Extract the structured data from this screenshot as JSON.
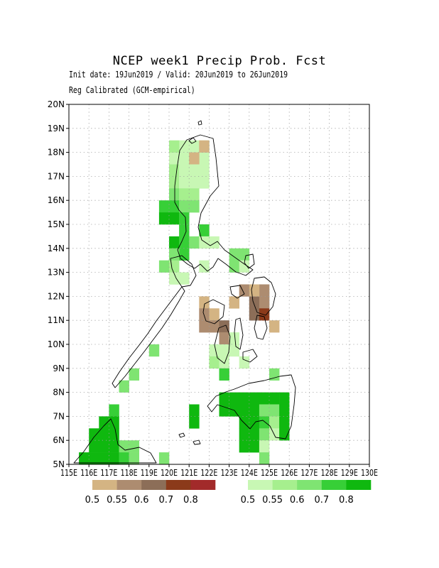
{
  "title": "NCEP week1 Precip Prob. Fcst",
  "subtitle_1": "Init date: 19Jun2019 / Valid: 20Jun2019 to 26Jun2019",
  "subtitle_2": "Reg Calibrated (GCM-empirical)",
  "map": {
    "lon_range": [
      115,
      130
    ],
    "lat_range": [
      5,
      20
    ],
    "grid": true,
    "y_tick_labels": [
      "5N",
      "6N",
      "7N",
      "8N",
      "9N",
      "10N",
      "11N",
      "12N",
      "13N",
      "14N",
      "15N",
      "16N",
      "17N",
      "18N",
      "19N",
      "20N"
    ],
    "x_tick_labels": [
      "115E",
      "116E",
      "117E",
      "118E",
      "119E",
      "120E",
      "121E",
      "122E",
      "123E",
      "124E",
      "125E",
      "126E",
      "127E",
      "128E",
      "129E",
      "130E"
    ],
    "colors": {
      "dry": [
        "#d4b483",
        "#ad8c70",
        "#8c6e58",
        "#8b3a1a",
        "#a22a2a"
      ],
      "wet": [
        "#c8f7b4",
        "#a6ef8e",
        "#7fe472",
        "#37cf37",
        "#0fb80f"
      ]
    },
    "cells": [
      {
        "lon": 120.25,
        "lat": 17.75,
        "cat": "w1"
      },
      {
        "lon": 120.25,
        "lat": 17.25,
        "cat": "w2"
      },
      {
        "lon": 120.25,
        "lat": 16.75,
        "cat": "w2"
      },
      {
        "lon": 120.25,
        "lat": 16.25,
        "cat": "w3"
      },
      {
        "lon": 120.25,
        "lat": 15.75,
        "cat": "w4"
      },
      {
        "lon": 119.75,
        "lat": 15.75,
        "cat": "w4"
      },
      {
        "lon": 119.75,
        "lat": 15.25,
        "cat": "w5"
      },
      {
        "lon": 120.25,
        "lat": 15.25,
        "cat": "w5"
      },
      {
        "lon": 120.75,
        "lat": 17.75,
        "cat": "w1"
      },
      {
        "lon": 121.25,
        "lat": 17.75,
        "cat": "w1"
      },
      {
        "lon": 121.75,
        "lat": 17.75,
        "cat": "w1"
      },
      {
        "lon": 121.75,
        "lat": 18.25,
        "cat": "w1"
      },
      {
        "lon": 121.25,
        "lat": 18.25,
        "cat": "w1"
      },
      {
        "lon": 120.75,
        "lat": 18.25,
        "cat": "w1"
      },
      {
        "lon": 120.25,
        "lat": 18.25,
        "cat": "w2"
      },
      {
        "lon": 121.75,
        "lat": 18.25,
        "cat": "d1"
      },
      {
        "lon": 121.25,
        "lat": 17.75,
        "cat": "d1"
      },
      {
        "lon": 120.75,
        "lat": 17.25,
        "cat": "w1"
      },
      {
        "lon": 121.25,
        "lat": 17.25,
        "cat": "w1"
      },
      {
        "lon": 121.75,
        "lat": 17.25,
        "cat": "w1"
      },
      {
        "lon": 121.75,
        "lat": 16.75,
        "cat": "w1"
      },
      {
        "lon": 121.25,
        "lat": 16.75,
        "cat": "w1"
      },
      {
        "lon": 120.75,
        "lat": 16.75,
        "cat": "w1"
      },
      {
        "lon": 120.75,
        "lat": 16.25,
        "cat": "w2"
      },
      {
        "lon": 121.25,
        "lat": 16.25,
        "cat": "w2"
      },
      {
        "lon": 120.75,
        "lat": 15.75,
        "cat": "w3"
      },
      {
        "lon": 121.25,
        "lat": 15.75,
        "cat": "w3"
      },
      {
        "lon": 120.75,
        "lat": 15.25,
        "cat": "w4"
      },
      {
        "lon": 120.75,
        "lat": 14.75,
        "cat": "w4"
      },
      {
        "lon": 120.25,
        "lat": 14.25,
        "cat": "w5"
      },
      {
        "lon": 120.75,
        "lat": 14.25,
        "cat": "w4"
      },
      {
        "lon": 120.75,
        "lat": 13.75,
        "cat": "w4"
      },
      {
        "lon": 121.25,
        "lat": 14.25,
        "cat": "w3"
      },
      {
        "lon": 121.75,
        "lat": 14.75,
        "cat": "w4"
      },
      {
        "lon": 121.75,
        "lat": 14.25,
        "cat": "w1"
      },
      {
        "lon": 122.25,
        "lat": 14.25,
        "cat": "w1"
      },
      {
        "lon": 120.25,
        "lat": 13.75,
        "cat": "w3"
      },
      {
        "lon": 119.75,
        "lat": 13.25,
        "cat": "w3"
      },
      {
        "lon": 120.25,
        "lat": 13.25,
        "cat": "w2"
      },
      {
        "lon": 120.25,
        "lat": 12.75,
        "cat": "w1"
      },
      {
        "lon": 120.75,
        "lat": 12.75,
        "cat": "w1"
      },
      {
        "lon": 121.75,
        "lat": 13.25,
        "cat": "w1"
      },
      {
        "lon": 123.25,
        "lat": 13.75,
        "cat": "w3"
      },
      {
        "lon": 123.75,
        "lat": 13.75,
        "cat": "w3"
      },
      {
        "lon": 123.25,
        "lat": 13.25,
        "cat": "w3"
      },
      {
        "lon": 123.75,
        "lat": 13.25,
        "cat": "w1"
      },
      {
        "lon": 123.75,
        "lat": 12.25,
        "cat": "d2"
      },
      {
        "lon": 123.25,
        "lat": 11.75,
        "cat": "d1"
      },
      {
        "lon": 124.25,
        "lat": 11.75,
        "cat": "d3"
      },
      {
        "lon": 124.75,
        "lat": 11.75,
        "cat": "d2"
      },
      {
        "lon": 124.75,
        "lat": 12.25,
        "cat": "d2"
      },
      {
        "lon": 124.25,
        "lat": 12.25,
        "cat": "d1"
      },
      {
        "lon": 124.25,
        "lat": 11.25,
        "cat": "d3"
      },
      {
        "lon": 124.75,
        "lat": 11.25,
        "cat": "d4"
      },
      {
        "lon": 125.25,
        "lat": 10.75,
        "cat": "d1"
      },
      {
        "lon": 121.75,
        "lat": 11.75,
        "cat": "d1"
      },
      {
        "lon": 121.75,
        "lat": 11.25,
        "cat": "d2"
      },
      {
        "lon": 122.25,
        "lat": 11.25,
        "cat": "d1"
      },
      {
        "lon": 121.75,
        "lat": 10.75,
        "cat": "d2"
      },
      {
        "lon": 122.25,
        "lat": 10.75,
        "cat": "d2"
      },
      {
        "lon": 122.75,
        "lat": 10.75,
        "cat": "d3"
      },
      {
        "lon": 122.75,
        "lat": 10.25,
        "cat": "d2"
      },
      {
        "lon": 122.75,
        "lat": 9.75,
        "cat": "w1"
      },
      {
        "lon": 122.25,
        "lat": 9.75,
        "cat": "w1"
      },
      {
        "lon": 122.25,
        "lat": 9.25,
        "cat": "w2"
      },
      {
        "lon": 122.75,
        "lat": 9.25,
        "cat": "w1"
      },
      {
        "lon": 122.75,
        "lat": 8.75,
        "cat": "w4"
      },
      {
        "lon": 123.25,
        "lat": 9.75,
        "cat": "w1"
      },
      {
        "lon": 123.75,
        "lat": 9.25,
        "cat": "w1"
      },
      {
        "lon": 123.25,
        "lat": 10.25,
        "cat": "w1"
      },
      {
        "lon": 119.25,
        "lat": 9.75,
        "cat": "w3"
      },
      {
        "lon": 118.25,
        "lat": 8.75,
        "cat": "w3"
      },
      {
        "lon": 117.75,
        "lat": 8.25,
        "cat": "w3"
      },
      {
        "lon": 125.25,
        "lat": 8.75,
        "cat": "w3"
      },
      {
        "lon": 122.75,
        "lat": 7.75,
        "cat": "w5"
      },
      {
        "lon": 123.25,
        "lat": 7.75,
        "cat": "w5"
      },
      {
        "lon": 123.75,
        "lat": 7.75,
        "cat": "w5"
      },
      {
        "lon": 124.25,
        "lat": 7.75,
        "cat": "w5"
      },
      {
        "lon": 124.75,
        "lat": 7.75,
        "cat": "w5"
      },
      {
        "lon": 125.25,
        "lat": 7.75,
        "cat": "w5"
      },
      {
        "lon": 125.75,
        "lat": 7.75,
        "cat": "w5"
      },
      {
        "lon": 122.75,
        "lat": 7.25,
        "cat": "w5"
      },
      {
        "lon": 123.25,
        "lat": 7.25,
        "cat": "w5"
      },
      {
        "lon": 123.75,
        "lat": 7.25,
        "cat": "w5"
      },
      {
        "lon": 124.25,
        "lat": 7.25,
        "cat": "w5"
      },
      {
        "lon": 124.75,
        "lat": 7.25,
        "cat": "w3"
      },
      {
        "lon": 125.25,
        "lat": 7.25,
        "cat": "w3"
      },
      {
        "lon": 125.75,
        "lat": 7.25,
        "cat": "w5"
      },
      {
        "lon": 121.25,
        "lat": 7.25,
        "cat": "w5"
      },
      {
        "lon": 121.25,
        "lat": 6.75,
        "cat": "w5"
      },
      {
        "lon": 123.75,
        "lat": 6.75,
        "cat": "w5"
      },
      {
        "lon": 124.25,
        "lat": 6.75,
        "cat": "w5"
      },
      {
        "lon": 124.75,
        "lat": 6.75,
        "cat": "w4"
      },
      {
        "lon": 125.25,
        "lat": 6.75,
        "cat": "w2"
      },
      {
        "lon": 125.75,
        "lat": 6.75,
        "cat": "w5"
      },
      {
        "lon": 123.75,
        "lat": 6.25,
        "cat": "w5"
      },
      {
        "lon": 124.25,
        "lat": 6.25,
        "cat": "w5"
      },
      {
        "lon": 124.75,
        "lat": 6.25,
        "cat": "w3"
      },
      {
        "lon": 125.25,
        "lat": 6.25,
        "cat": "w1"
      },
      {
        "lon": 125.75,
        "lat": 6.25,
        "cat": "w5"
      },
      {
        "lon": 123.75,
        "lat": 5.75,
        "cat": "w5"
      },
      {
        "lon": 124.25,
        "lat": 5.75,
        "cat": "w5"
      },
      {
        "lon": 124.75,
        "lat": 5.75,
        "cat": "w1"
      },
      {
        "lon": 124.75,
        "lat": 5.25,
        "cat": "w3"
      },
      {
        "lon": 117.25,
        "lat": 7.25,
        "cat": "w4"
      },
      {
        "lon": 116.75,
        "lat": 6.75,
        "cat": "w5"
      },
      {
        "lon": 117.25,
        "lat": 6.75,
        "cat": "w5"
      },
      {
        "lon": 116.25,
        "lat": 6.25,
        "cat": "w5"
      },
      {
        "lon": 116.75,
        "lat": 6.25,
        "cat": "w5"
      },
      {
        "lon": 117.25,
        "lat": 6.25,
        "cat": "w5"
      },
      {
        "lon": 116.25,
        "lat": 5.75,
        "cat": "w5"
      },
      {
        "lon": 116.75,
        "lat": 5.75,
        "cat": "w5"
      },
      {
        "lon": 117.25,
        "lat": 5.75,
        "cat": "w5"
      },
      {
        "lon": 117.75,
        "lat": 5.75,
        "cat": "w3"
      },
      {
        "lon": 118.25,
        "lat": 5.75,
        "cat": "w3"
      },
      {
        "lon": 115.75,
        "lat": 5.25,
        "cat": "w5"
      },
      {
        "lon": 116.25,
        "lat": 5.25,
        "cat": "w5"
      },
      {
        "lon": 116.75,
        "lat": 5.25,
        "cat": "w5"
      },
      {
        "lon": 117.25,
        "lat": 5.25,
        "cat": "w5"
      },
      {
        "lon": 117.75,
        "lat": 5.25,
        "cat": "w4"
      },
      {
        "lon": 118.25,
        "lat": 5.25,
        "cat": "w3"
      },
      {
        "lon": 119.75,
        "lat": 5.25,
        "cat": "w3"
      }
    ]
  },
  "legend": {
    "dry_labels": [
      "0.5",
      "0.55",
      "0.6",
      "0.7",
      "0.8"
    ],
    "wet_labels": [
      "0.5",
      "0.55",
      "0.6",
      "0.7",
      "0.8"
    ]
  }
}
